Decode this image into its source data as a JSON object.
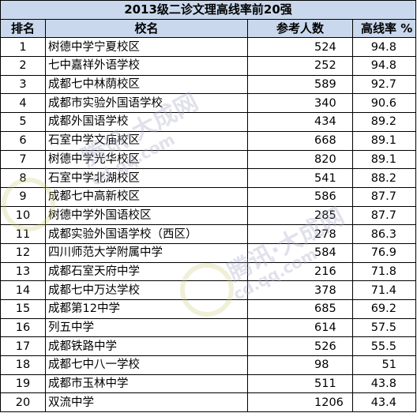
{
  "title": "2013级二诊文理高线率前20强",
  "columns": {
    "rank": "排名",
    "school": "校名",
    "count": "参考人数",
    "rate": "高线率 %"
  },
  "rows": [
    {
      "rank": "1",
      "school": "树德中学宁夏校区",
      "count": "524",
      "rate": "94.8"
    },
    {
      "rank": "2",
      "school": "七中嘉祥外语学校",
      "count": "252",
      "rate": "94.8"
    },
    {
      "rank": "3",
      "school": "成都七中林荫校区",
      "count": "589",
      "rate": "92.7"
    },
    {
      "rank": "4",
      "school": "成都市实验外国语学校",
      "count": "340",
      "rate": "90.6"
    },
    {
      "rank": "5",
      "school": "成都外国语学校",
      "count": "434",
      "rate": "89.2"
    },
    {
      "rank": "6",
      "school": "石室中学文庙校区",
      "count": "668",
      "rate": "89.1"
    },
    {
      "rank": "7",
      "school": "树德中学光华校区",
      "count": "820",
      "rate": "89.1"
    },
    {
      "rank": "8",
      "school": "石室中学北湖校区",
      "count": "541",
      "rate": "88.2"
    },
    {
      "rank": "9",
      "school": "成都七中高新校区",
      "count": "586",
      "rate": "87.7"
    },
    {
      "rank": "10",
      "school": "树德中学外国语校区",
      "count": "285",
      "rate": "87.7"
    },
    {
      "rank": "11",
      "school": "成都实验外国语学校（西区）",
      "count": "278",
      "rate": "86.3"
    },
    {
      "rank": "12",
      "school": "四川师范大学附属中学",
      "count": "584",
      "rate": "76.9"
    },
    {
      "rank": "13",
      "school": "成都石室天府中学",
      "count": "216",
      "rate": "71.8"
    },
    {
      "rank": "14",
      "school": "成都七中万达学校",
      "count": "378",
      "rate": "71.4"
    },
    {
      "rank": "15",
      "school": "成都第12中学",
      "count": "685",
      "rate": "69.2"
    },
    {
      "rank": "16",
      "school": "列五中学",
      "count": "614",
      "rate": "57.5"
    },
    {
      "rank": "17",
      "school": "成都铁路中学",
      "count": "526",
      "rate": "55.5"
    },
    {
      "rank": "18",
      "school": "成都七中八一学校",
      "count": "98",
      "rate": "51"
    },
    {
      "rank": "19",
      "school": "成都市玉林中学",
      "count": "511",
      "rate": "43.8"
    },
    {
      "rank": "20",
      "school": "双流中学",
      "count": "1206",
      "rate": "43.4"
    }
  ],
  "watermark": {
    "text": "腾讯·大成网",
    "subtext": "cd.qq.com"
  },
  "colors": {
    "header_bg": "#c9d8ec",
    "border": "#000000",
    "watermark": "#aaaac8"
  }
}
